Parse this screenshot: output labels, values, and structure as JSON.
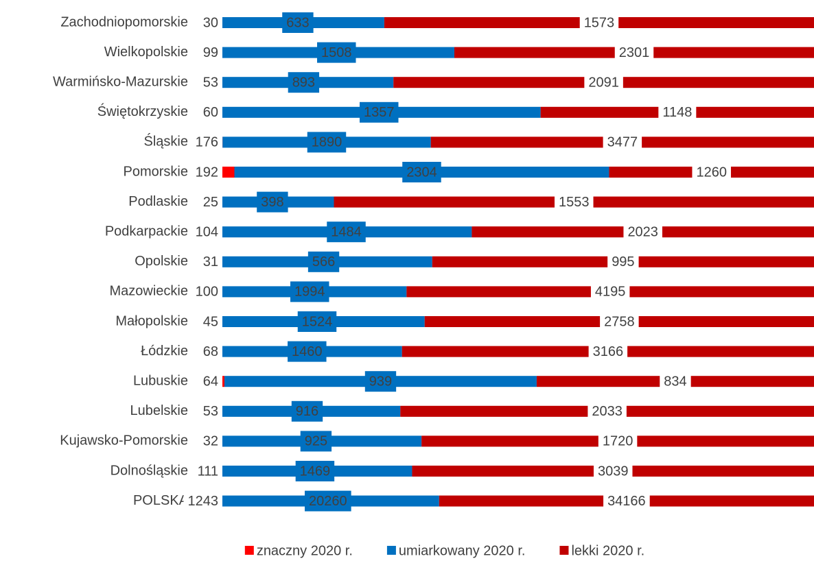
{
  "chart_data": {
    "type": "bar",
    "orientation": "horizontal",
    "stacked": "percent",
    "categories": [
      "Zachodniopomorskie",
      "Wielkopolskie",
      "Warmińsko-Mazurskie",
      "Świętokrzyskie",
      "Śląskie",
      "Pomorskie",
      "Podlaskie",
      "Podkarpackie",
      "Opolskie",
      "Mazowieckie",
      "Małopolskie",
      "Łódzkie",
      "Lubuskie",
      "Lubelskie",
      "Kujawsko-Pomorskie",
      "Dolnośląskie",
      "POLSKA"
    ],
    "series": [
      {
        "name": "znaczny 2020 r.",
        "color": "#ff0000",
        "values": [
          30,
          99,
          53,
          60,
          176,
          192,
          25,
          104,
          31,
          100,
          45,
          68,
          64,
          53,
          32,
          111,
          1243
        ]
      },
      {
        "name": "umiarkowany 2020 r.",
        "color": "#0070c0",
        "values": [
          633,
          1508,
          893,
          1357,
          1890,
          2304,
          398,
          1484,
          566,
          1994,
          1524,
          1460,
          939,
          916,
          925,
          1469,
          20260
        ]
      },
      {
        "name": "lekki 2020 r.",
        "color": "#c00000",
        "values": [
          1573,
          2301,
          2091,
          1148,
          3477,
          1260,
          1553,
          2023,
          995,
          4195,
          2758,
          3166,
          834,
          2033,
          1720,
          3039,
          34166
        ]
      }
    ],
    "legend": "bottom"
  }
}
